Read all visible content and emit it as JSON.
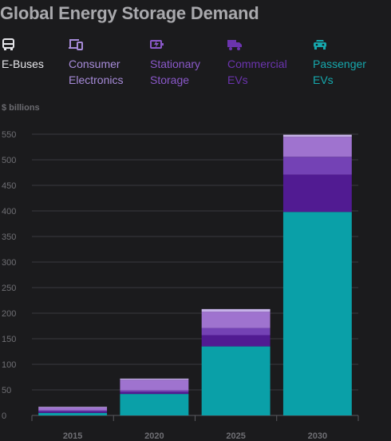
{
  "title": "Global Energy Storage Demand",
  "legend": [
    {
      "label": "E-Buses",
      "icon": "bus-icon",
      "color": "#e6e6ea"
    },
    {
      "label": "Consumer\nElectronics",
      "icon": "devices-icon",
      "color": "#a78bd9"
    },
    {
      "label": "Stationary\nStorage",
      "icon": "battery-charging-icon",
      "color": "#8a58c9"
    },
    {
      "label": "Commercial\nEVs",
      "icon": "truck-icon",
      "color": "#6b34ae"
    },
    {
      "label": "Passenger\nEVs",
      "icon": "car-icon",
      "color": "#16a8ad"
    }
  ],
  "chart_data": {
    "type": "bar",
    "stacked": true,
    "title": "Global Energy Storage Demand",
    "ylabel": "$ billions",
    "xlabel": "",
    "categories": [
      "2015",
      "2020",
      "2025",
      "2030"
    ],
    "ylim": [
      0,
      550
    ],
    "yticks": [
      0,
      50,
      100,
      150,
      200,
      250,
      300,
      350,
      400,
      450,
      500,
      550
    ],
    "grid": true,
    "legend_position": "top",
    "series": [
      {
        "name": "Passenger EVs",
        "color": "#0aa0a8",
        "values": [
          5,
          42,
          135,
          398
        ]
      },
      {
        "name": "Commercial EVs",
        "color": "#511b92",
        "values": [
          3,
          4,
          22,
          73
        ]
      },
      {
        "name": "Stationary Storage",
        "color": "#7442b5",
        "values": [
          2,
          3,
          14,
          35
        ]
      },
      {
        "name": "Consumer Electronics",
        "color": "#9f73cf",
        "values": [
          6,
          21,
          32,
          39
        ]
      },
      {
        "name": "E-Buses",
        "color": "#c6b2e8",
        "values": [
          1,
          2,
          5,
          4
        ]
      }
    ]
  }
}
